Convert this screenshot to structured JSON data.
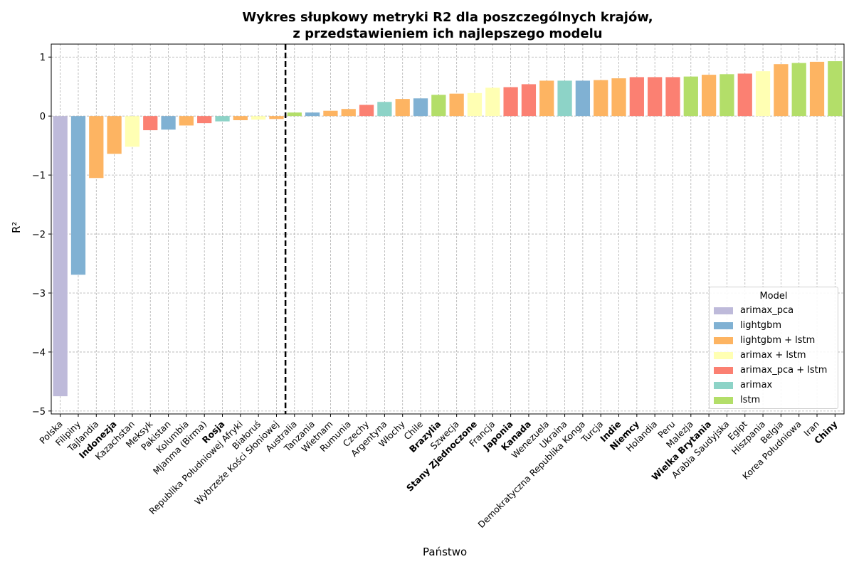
{
  "chart_data": {
    "type": "bar",
    "title_line1": "Wykres słupkowy metryki R2 dla poszczególnych krajów,",
    "title_line2": "z przedstawieniem ich najlepszego modelu",
    "xlabel": "Państwo",
    "ylabel": "R²",
    "ylim": [
      -5.05,
      1.22
    ],
    "yticks": [
      -5,
      -4,
      -3,
      -2,
      -1,
      0,
      1
    ],
    "ytick_labels": [
      "−5",
      "−4",
      "−3",
      "−2",
      "−1",
      "0",
      "1"
    ],
    "grid": true,
    "divider_after_category": "Wybrzeże Kości Słoniowej",
    "legend_position": "bottom-right",
    "legend": {
      "title": "Model",
      "entries": [
        {
          "label": "arimax_pca",
          "color": "#bebada"
        },
        {
          "label": "lightgbm",
          "color": "#80b1d3"
        },
        {
          "label": "lightgbm + lstm",
          "color": "#fdb462"
        },
        {
          "label": "arimax + lstm",
          "color": "#ffffb3"
        },
        {
          "label": "arimax_pca + lstm",
          "color": "#fb8072"
        },
        {
          "label": "arimax",
          "color": "#8dd3c7"
        },
        {
          "label": "lstm",
          "color": "#b3de69"
        }
      ]
    },
    "bars": [
      {
        "country": "Polska",
        "value": -4.75,
        "model": "arimax_pca",
        "bold": false
      },
      {
        "country": "Filipiny",
        "value": -2.69,
        "model": "lightgbm",
        "bold": false
      },
      {
        "country": "Tajlandia",
        "value": -1.05,
        "model": "lightgbm + lstm",
        "bold": false
      },
      {
        "country": "Indonezja",
        "value": -0.64,
        "model": "lightgbm + lstm",
        "bold": true
      },
      {
        "country": "Kazachstan",
        "value": -0.52,
        "model": "arimax + lstm",
        "bold": false
      },
      {
        "country": "Meksyk",
        "value": -0.24,
        "model": "arimax_pca + lstm",
        "bold": false
      },
      {
        "country": "Pakistan",
        "value": -0.23,
        "model": "lightgbm",
        "bold": false
      },
      {
        "country": "Kolumbia",
        "value": -0.16,
        "model": "lightgbm + lstm",
        "bold": false
      },
      {
        "country": "Mjanma (Birma)",
        "value": -0.12,
        "model": "arimax_pca + lstm",
        "bold": false
      },
      {
        "country": "Rosja",
        "value": -0.09,
        "model": "arimax",
        "bold": true
      },
      {
        "country": "Republika Południowej Afryki",
        "value": -0.07,
        "model": "lightgbm + lstm",
        "bold": false
      },
      {
        "country": "Białoruś",
        "value": -0.06,
        "model": "arimax + lstm",
        "bold": false
      },
      {
        "country": "Wybrzeże Kości Słoniowej",
        "value": -0.05,
        "model": "lightgbm + lstm",
        "bold": false
      },
      {
        "country": "Australia",
        "value": 0.06,
        "model": "lstm",
        "bold": false
      },
      {
        "country": "Tanzania",
        "value": 0.06,
        "model": "lightgbm",
        "bold": false
      },
      {
        "country": "Wietnam",
        "value": 0.09,
        "model": "lightgbm + lstm",
        "bold": false
      },
      {
        "country": "Rumunia",
        "value": 0.12,
        "model": "lightgbm + lstm",
        "bold": false
      },
      {
        "country": "Czechy",
        "value": 0.19,
        "model": "arimax_pca + lstm",
        "bold": false
      },
      {
        "country": "Argentyna",
        "value": 0.24,
        "model": "arimax",
        "bold": false
      },
      {
        "country": "Włochy",
        "value": 0.29,
        "model": "lightgbm + lstm",
        "bold": false
      },
      {
        "country": "Chile",
        "value": 0.3,
        "model": "lightgbm",
        "bold": false
      },
      {
        "country": "Brazylia",
        "value": 0.36,
        "model": "lstm",
        "bold": true
      },
      {
        "country": "Szwecja",
        "value": 0.38,
        "model": "lightgbm + lstm",
        "bold": false
      },
      {
        "country": "Stany Zjednoczone",
        "value": 0.39,
        "model": "arimax + lstm",
        "bold": true
      },
      {
        "country": "Francja",
        "value": 0.48,
        "model": "arimax + lstm",
        "bold": false
      },
      {
        "country": "Japonia",
        "value": 0.49,
        "model": "arimax_pca + lstm",
        "bold": true
      },
      {
        "country": "Kanada",
        "value": 0.54,
        "model": "arimax_pca + lstm",
        "bold": true
      },
      {
        "country": "Wenezuela",
        "value": 0.6,
        "model": "lightgbm + lstm",
        "bold": false
      },
      {
        "country": "Ukraina",
        "value": 0.6,
        "model": "arimax",
        "bold": false
      },
      {
        "country": "Demokratyczna Republika Konga",
        "value": 0.6,
        "model": "lightgbm",
        "bold": false
      },
      {
        "country": "Turcja",
        "value": 0.61,
        "model": "lightgbm + lstm",
        "bold": false
      },
      {
        "country": "Indie",
        "value": 0.64,
        "model": "lightgbm + lstm",
        "bold": true
      },
      {
        "country": "Niemcy",
        "value": 0.66,
        "model": "arimax_pca + lstm",
        "bold": true
      },
      {
        "country": "Holandia",
        "value": 0.66,
        "model": "arimax_pca + lstm",
        "bold": false
      },
      {
        "country": "Peru",
        "value": 0.66,
        "model": "arimax_pca + lstm",
        "bold": false
      },
      {
        "country": "Malezja",
        "value": 0.67,
        "model": "lstm",
        "bold": false
      },
      {
        "country": "Wielka Brytania",
        "value": 0.7,
        "model": "lightgbm + lstm",
        "bold": true
      },
      {
        "country": "Arabia Saudyjska",
        "value": 0.71,
        "model": "lstm",
        "bold": false
      },
      {
        "country": "Egipt",
        "value": 0.72,
        "model": "arimax_pca + lstm",
        "bold": false
      },
      {
        "country": "Hiszpania",
        "value": 0.76,
        "model": "arimax + lstm",
        "bold": false
      },
      {
        "country": "Belgia",
        "value": 0.88,
        "model": "lightgbm + lstm",
        "bold": false
      },
      {
        "country": "Korea Południowa",
        "value": 0.9,
        "model": "lstm",
        "bold": false
      },
      {
        "country": "Iran",
        "value": 0.92,
        "model": "lightgbm + lstm",
        "bold": false
      },
      {
        "country": "Chiny",
        "value": 0.93,
        "model": "lstm",
        "bold": true
      }
    ]
  }
}
